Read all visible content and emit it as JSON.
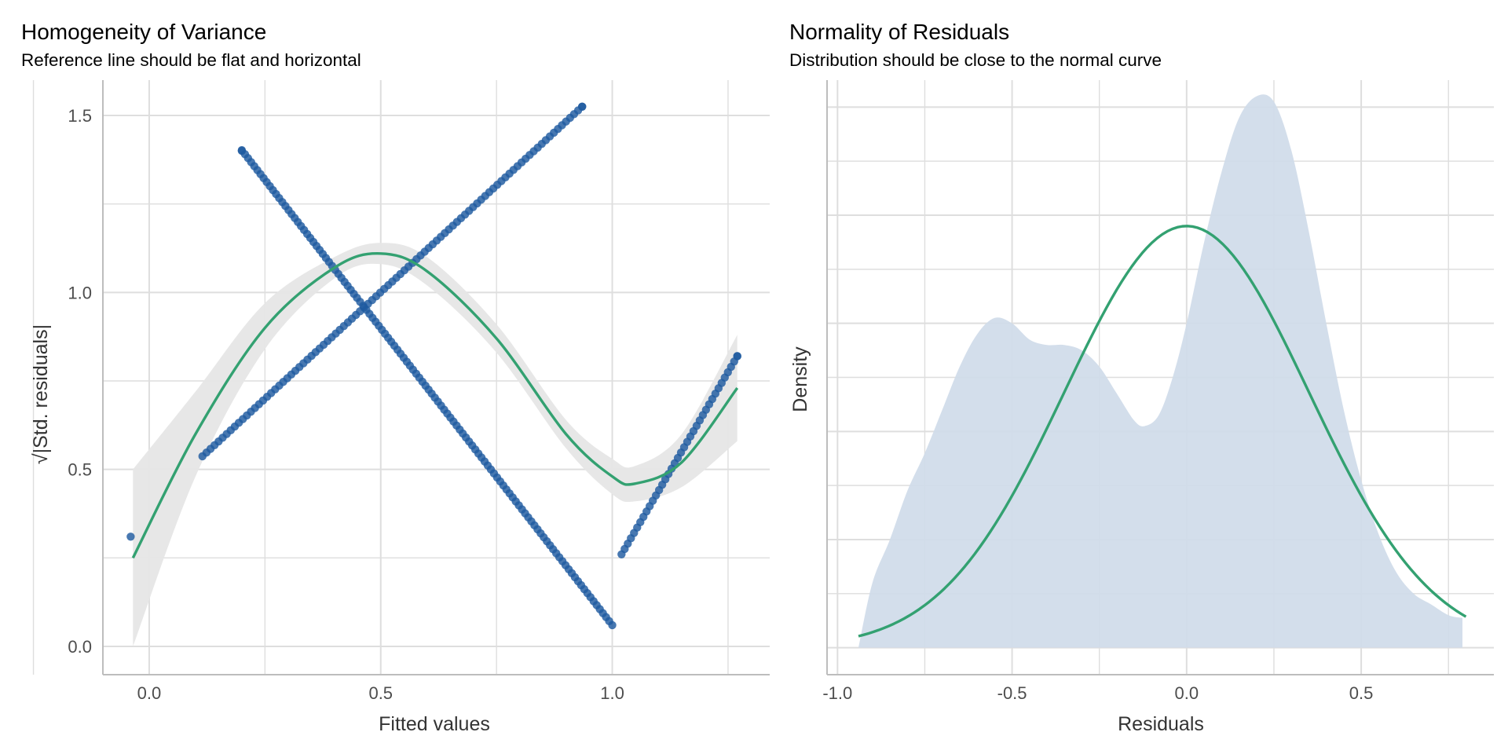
{
  "colors": {
    "points": "#1f5aa0",
    "curve": "#33a171",
    "ribbon": "#e6e6e6",
    "density_fill": "#cfdbe9",
    "grid": "#dedede",
    "axis": "#bdbdbd"
  },
  "chart_data": [
    {
      "type": "scatter",
      "title": "Homogeneity of Variance",
      "subtitle": "Reference line should be flat and horizontal",
      "xlabel": "Fitted values",
      "ylabel": "√|Std. residuals|",
      "xlim": [
        -0.1,
        1.34
      ],
      "ylim": [
        -0.08,
        1.6
      ],
      "x_ticks": [
        0.0,
        0.5,
        1.0
      ],
      "x_tick_labels": [
        "0.0",
        "0.5",
        "1.0"
      ],
      "y_ticks": [
        0.0,
        0.5,
        1.0,
        1.5
      ],
      "y_tick_labels": [
        "0.0",
        "0.5",
        "1.0",
        "1.5"
      ],
      "grid": true,
      "point_groups": [
        {
          "from": [
            0.115,
            0.537
          ],
          "to": [
            0.935,
            1.525
          ],
          "n": 95
        },
        {
          "from": [
            0.2,
            1.402
          ],
          "to": [
            1.0,
            0.06
          ],
          "n": 120
        },
        {
          "from": [
            1.02,
            0.26
          ],
          "to": [
            1.27,
            0.82
          ],
          "n": 38
        }
      ],
      "extra_points": [
        [
          -0.04,
          0.31
        ],
        [
          0.2,
          1.4
        ],
        [
          0.935,
          1.525
        ],
        [
          1.27,
          0.82
        ]
      ],
      "smooth_line": [
        [
          -0.035,
          0.25
        ],
        [
          0.1,
          0.6
        ],
        [
          0.25,
          0.9
        ],
        [
          0.4,
          1.07
        ],
        [
          0.5,
          1.11
        ],
        [
          0.6,
          1.06
        ],
        [
          0.75,
          0.87
        ],
        [
          0.9,
          0.6
        ],
        [
          1.0,
          0.48
        ],
        [
          1.05,
          0.46
        ],
        [
          1.15,
          0.52
        ],
        [
          1.27,
          0.73
        ]
      ],
      "ribbon_upper": [
        [
          -0.035,
          0.5
        ],
        [
          0.1,
          0.72
        ],
        [
          0.25,
          0.97
        ],
        [
          0.4,
          1.1
        ],
        [
          0.5,
          1.14
        ],
        [
          0.6,
          1.1
        ],
        [
          0.75,
          0.91
        ],
        [
          0.9,
          0.64
        ],
        [
          1.0,
          0.53
        ],
        [
          1.05,
          0.51
        ],
        [
          1.15,
          0.6
        ],
        [
          1.27,
          0.88
        ]
      ],
      "ribbon_lower": [
        [
          -0.035,
          0.0
        ],
        [
          0.1,
          0.48
        ],
        [
          0.25,
          0.84
        ],
        [
          0.4,
          1.04
        ],
        [
          0.5,
          1.08
        ],
        [
          0.6,
          1.02
        ],
        [
          0.75,
          0.83
        ],
        [
          0.9,
          0.56
        ],
        [
          1.0,
          0.43
        ],
        [
          1.05,
          0.41
        ],
        [
          1.15,
          0.45
        ],
        [
          1.27,
          0.58
        ]
      ]
    },
    {
      "type": "area",
      "title": "Normality of Residuals",
      "subtitle": "Distribution should be close to the normal curve",
      "xlabel": "Residuals",
      "ylabel": "Density",
      "xlim": [
        -1.03,
        0.88
      ],
      "ylim": [
        -0.05,
        1.05
      ],
      "x_ticks": [
        -1.0,
        -0.5,
        0.0,
        0.5
      ],
      "x_tick_labels": [
        "-1.0",
        "-0.5",
        "0.0",
        "0.5"
      ],
      "grid": true,
      "density": [
        [
          -0.94,
          0.0
        ],
        [
          -0.9,
          0.12
        ],
        [
          -0.85,
          0.2
        ],
        [
          -0.8,
          0.29
        ],
        [
          -0.75,
          0.36
        ],
        [
          -0.7,
          0.44
        ],
        [
          -0.65,
          0.52
        ],
        [
          -0.6,
          0.58
        ],
        [
          -0.55,
          0.61
        ],
        [
          -0.5,
          0.6
        ],
        [
          -0.45,
          0.57
        ],
        [
          -0.4,
          0.56
        ],
        [
          -0.35,
          0.56
        ],
        [
          -0.3,
          0.55
        ],
        [
          -0.25,
          0.52
        ],
        [
          -0.2,
          0.47
        ],
        [
          -0.15,
          0.42
        ],
        [
          -0.12,
          0.41
        ],
        [
          -0.08,
          0.43
        ],
        [
          -0.04,
          0.5
        ],
        [
          0.0,
          0.6
        ],
        [
          0.05,
          0.75
        ],
        [
          0.1,
          0.88
        ],
        [
          0.15,
          0.98
        ],
        [
          0.2,
          1.02
        ],
        [
          0.25,
          1.01
        ],
        [
          0.3,
          0.92
        ],
        [
          0.35,
          0.77
        ],
        [
          0.4,
          0.6
        ],
        [
          0.45,
          0.44
        ],
        [
          0.5,
          0.31
        ],
        [
          0.55,
          0.21
        ],
        [
          0.6,
          0.14
        ],
        [
          0.65,
          0.1
        ],
        [
          0.7,
          0.08
        ],
        [
          0.75,
          0.06
        ],
        [
          0.79,
          0.055
        ]
      ],
      "normal_curve": {
        "mean": 0.0,
        "sd": 0.35,
        "peak": 0.78,
        "range": [
          -0.94,
          0.8
        ]
      }
    }
  ]
}
